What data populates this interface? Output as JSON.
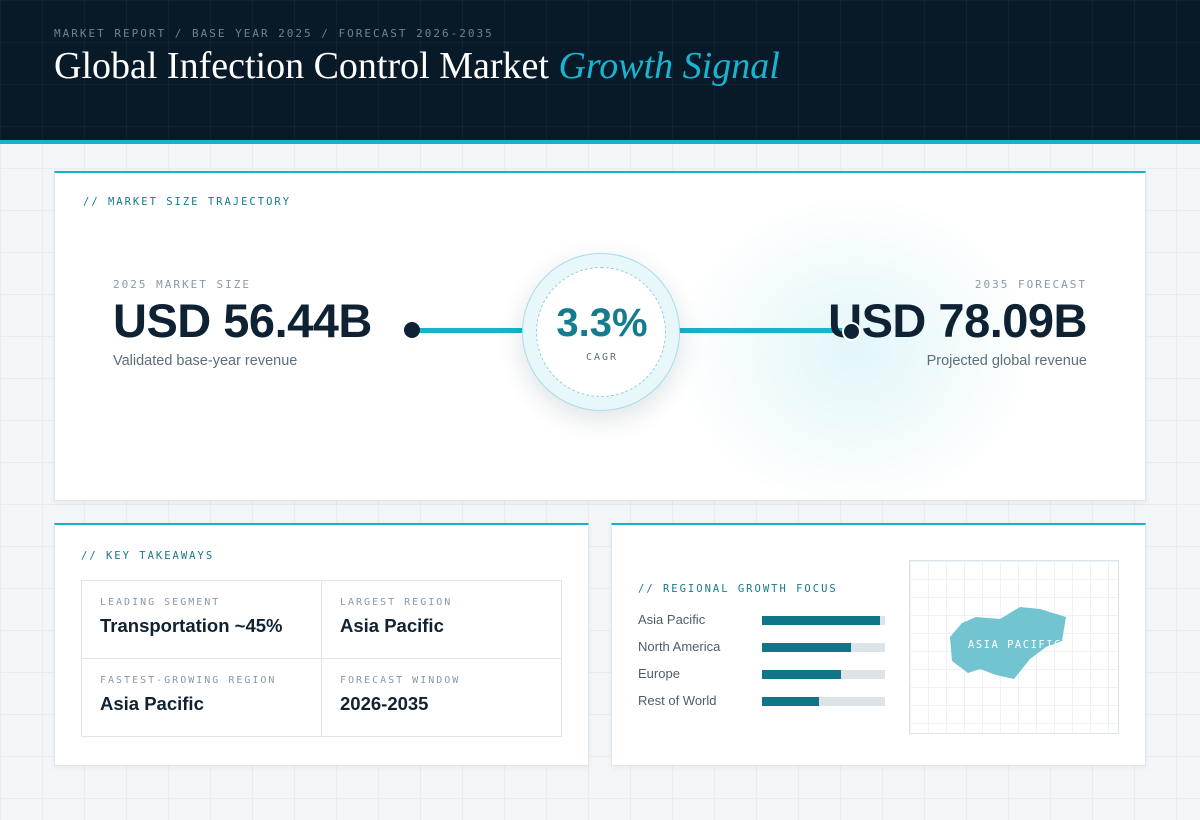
{
  "header": {
    "breadcrumb": "MARKET REPORT / BASE YEAR 2025 / FORECAST 2026-2035",
    "title_main": "Global Infection Control Market",
    "title_accent": "Growth Signal"
  },
  "trajectory": {
    "section_label": "// MARKET SIZE TRAJECTORY",
    "base": {
      "label": "2025 MARKET SIZE",
      "value": "USD 56.44B",
      "description": "Validated base-year revenue"
    },
    "forecast": {
      "label": "2035 FORECAST",
      "value": "USD 78.09B",
      "description": "Projected global revenue"
    },
    "cagr": {
      "value": "3.3%",
      "label": "CAGR"
    }
  },
  "takeaways": {
    "section_label": "// KEY TAKEAWAYS",
    "items": [
      {
        "label": "LEADING SEGMENT",
        "value": "Transportation ~45%"
      },
      {
        "label": "LARGEST REGION",
        "value": "Asia Pacific"
      },
      {
        "label": "FASTEST-GROWING REGION",
        "value": "Asia Pacific"
      },
      {
        "label": "FORECAST WINDOW",
        "value": "2026-2035"
      }
    ]
  },
  "regional": {
    "section_label": "// REGIONAL GROWTH FOCUS",
    "regions": [
      {
        "name": "Asia Pacific",
        "share": 0.96
      },
      {
        "name": "North America",
        "share": 0.72
      },
      {
        "name": "Europe",
        "share": 0.64
      },
      {
        "name": "Rest of World",
        "share": 0.46
      }
    ],
    "map_label": "ASIA PACIFIC"
  },
  "colors": {
    "accent": "#17b2cc",
    "header_bg": "#081a27",
    "bar_fill": "#0f7688",
    "map_shape": "#72c4d1"
  }
}
